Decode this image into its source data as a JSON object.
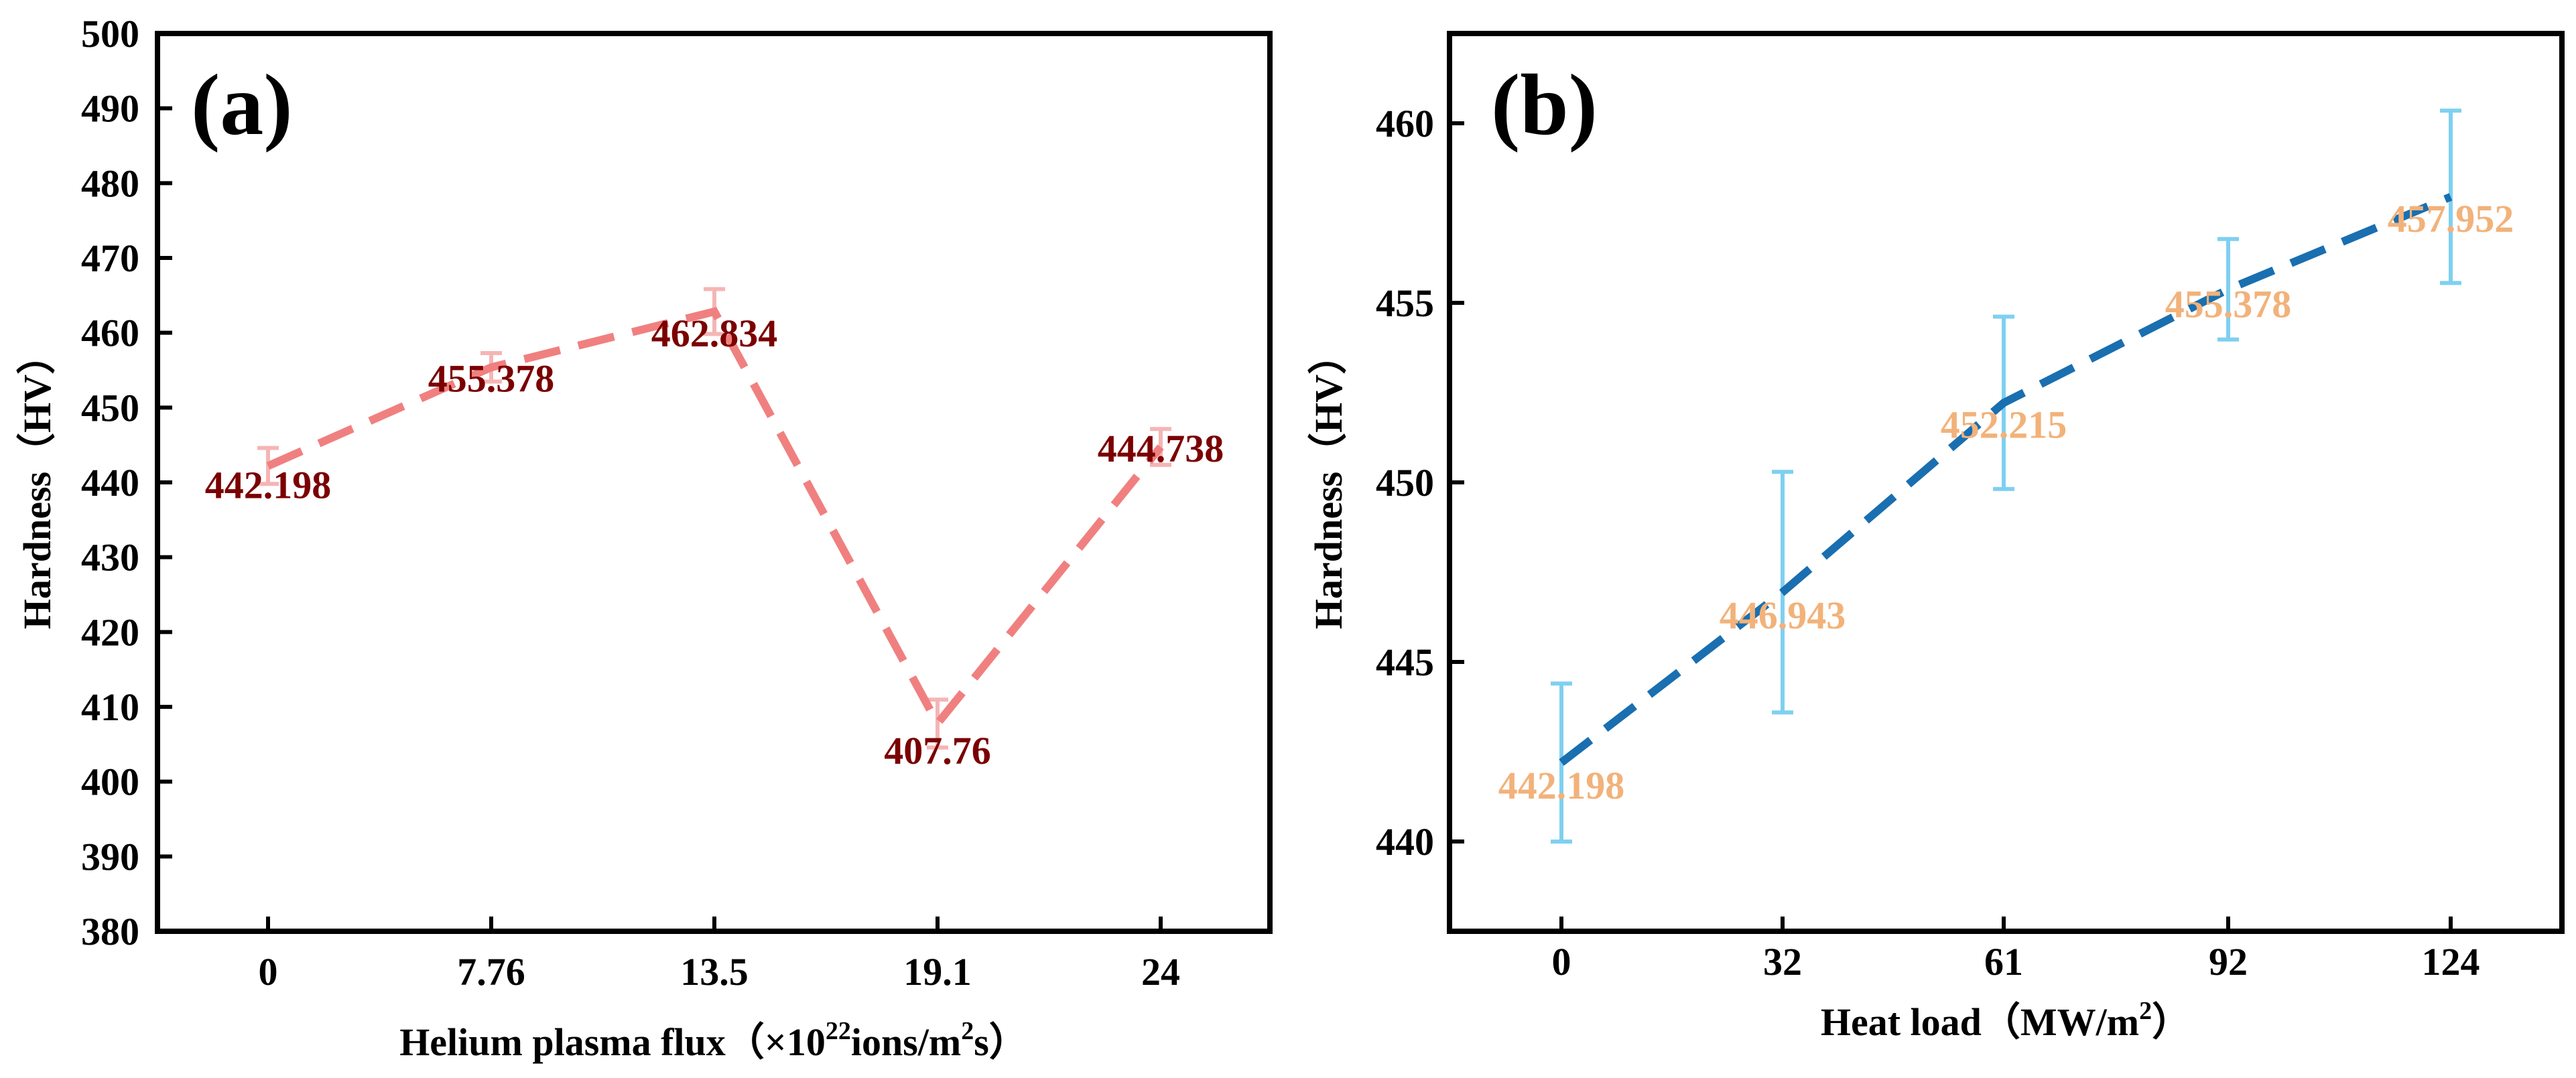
{
  "chart_data": [
    {
      "type": "line",
      "panel_label": "(a)",
      "ylabel": "Hardness（HV）",
      "xlabel_main": "Helium plasma flux（×10",
      "xlabel_sup1": "22",
      "xlabel_mid": "ions/m",
      "xlabel_sup2": "2",
      "xlabel_end": "s）",
      "ylim": [
        380,
        500
      ],
      "yticks": [
        "380",
        "390",
        "400",
        "410",
        "420",
        "430",
        "440",
        "450",
        "460",
        "470",
        "480",
        "490",
        "500"
      ],
      "categories": [
        "0",
        "7.76",
        "13.5",
        "19.1",
        "24"
      ],
      "values": [
        442.198,
        455.378,
        462.834,
        407.76,
        444.738
      ],
      "errors": [
        2.4,
        1.9,
        3.0,
        3.2,
        2.4
      ],
      "data_labels": [
        "442.198",
        "455.378",
        "462.834",
        "407.76",
        "444.738"
      ],
      "colors": {
        "line": "#f08080",
        "error": "#f5b5b5",
        "label": "#7b0000"
      }
    },
    {
      "type": "line",
      "panel_label": "(b)",
      "ylabel": "Hardness（HV）",
      "xlabel_main": "Heat load（MW/m",
      "xlabel_sup": "2",
      "xlabel_end": "）",
      "ylim": [
        437.5,
        462.5
      ],
      "yticks": [
        "440",
        "445",
        "450",
        "455",
        "460"
      ],
      "categories": [
        "0",
        "32",
        "61",
        "92",
        "124"
      ],
      "values": [
        442.198,
        446.943,
        452.215,
        455.378,
        457.952
      ],
      "errors": [
        2.2,
        3.35,
        2.4,
        1.4,
        2.4
      ],
      "data_labels": [
        "442.198",
        "446.943",
        "452.215",
        "455.378",
        "457.952"
      ],
      "colors": {
        "line": "#1a6fb0",
        "error": "#7fd0f0",
        "label": "#f2b27a"
      }
    }
  ]
}
